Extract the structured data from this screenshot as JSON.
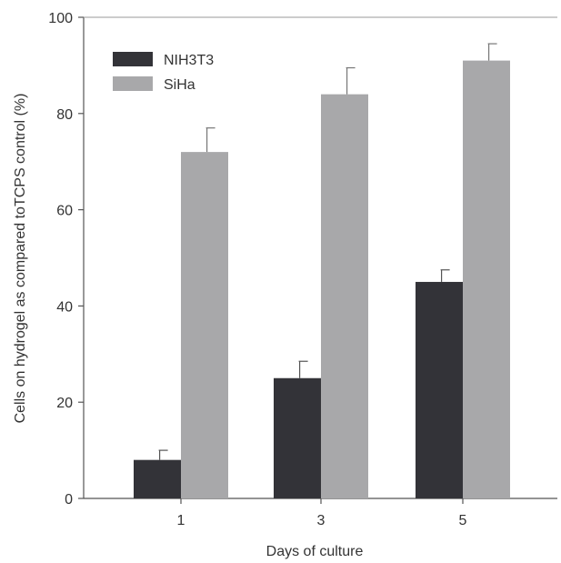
{
  "chart_data": {
    "type": "bar",
    "title": "",
    "xlabel": "Days of culture",
    "ylabel": "Cells on hydrogel as compared toTCPS control (%)",
    "categories": [
      "1",
      "3",
      "5"
    ],
    "series": [
      {
        "name": "NIH3T3",
        "values": [
          8,
          25,
          45
        ],
        "errors": [
          2,
          3.5,
          2.5
        ],
        "color": "#333338"
      },
      {
        "name": "SiHa",
        "values": [
          72,
          84,
          91
        ],
        "errors": [
          5,
          5.5,
          3.5
        ],
        "color": "#a8a8aa"
      }
    ],
    "ylim": [
      0,
      100
    ],
    "yticks": [
      0,
      20,
      40,
      60,
      80,
      100
    ],
    "grid": false,
    "legend": "top-left"
  }
}
